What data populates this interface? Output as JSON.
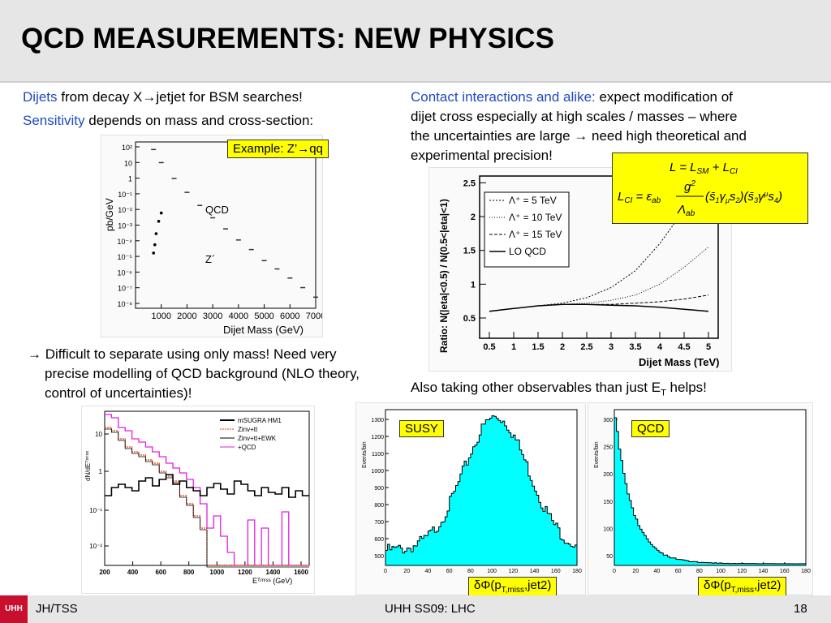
{
  "slide": {
    "title": "QCD MEASUREMENTS: NEW PHYSICS",
    "left": {
      "line1_hl": "Dijets",
      "line1_rest": " from decay X→jetjet for BSM searches!",
      "line2_hl": "Sensitivity",
      "line2_rest": " depends on mass and cross-section:",
      "example_box": "Example: Z’→qq",
      "bullet": "→ Difficult to separate using only mass! Need very",
      "bullet2": "precise modelling of QCD background (NLO theory,",
      "bullet3": "control of uncertainties)!"
    },
    "right": {
      "p_hl": "Contact interactions and alike:",
      "p1": " expect modification of",
      "p2": "dijet cross especially at high scales / masses – where",
      "p3": "the uncertainties are large → need high theoretical and",
      "p4": "experimental precision!",
      "also_pre": "Also taking other observables than just E",
      "also_sub": "T",
      "also_post": " helps!"
    },
    "formula": {
      "line1": "L = L_SM + L_CI",
      "line2": "L_CI = εⁱ_ab g²/Λⁱ_ab (s̄₁γ_μs₂)(s̄₃γ^μs₄)"
    },
    "footer": {
      "logo": "UHH",
      "left": "JH/TSS",
      "center": "UHH SS09: LHC",
      "page": "18"
    }
  },
  "plot_mass": {
    "ylabel": "pb/GeV",
    "xlabel": "Dijet Mass (GeV)",
    "yticks": [
      "10²",
      "10",
      "1",
      "10⁻¹",
      "10⁻²",
      "10⁻³",
      "10⁻⁴",
      "10⁻⁵",
      "10⁻⁶",
      "10⁻⁷",
      "10⁻⁸"
    ],
    "xticks": [
      "1000",
      "2000",
      "3000",
      "4000",
      "5000",
      "6000",
      "7000"
    ],
    "label_qcd": "QCD",
    "label_z": "Z´"
  },
  "plot_ratio": {
    "ylabel": "Ratio: N(|eta|<0.5) / N(0.5<|eta|<1)",
    "xlabel": "Dijet Mass (TeV)",
    "xticks": [
      "0.5",
      "1",
      "1.5",
      "2",
      "2.5",
      "3",
      "3.5",
      "4",
      "4.5",
      "5"
    ],
    "yticks": [
      "2.5",
      "2",
      "1.5",
      "1",
      "0.5"
    ],
    "legend": [
      "Λ⁺ = 5 TeV",
      "Λ⁺ = 10 TeV",
      "Λ⁺ = 15 TeV",
      "LO  QCD"
    ]
  },
  "plot_met": {
    "ylabel": "dN/dEᵀᵐⁱˢˢ",
    "xlabel": "Eᵀᵐⁱˢˢ (GeV)",
    "xticks": [
      "200",
      "400",
      "600",
      "800",
      "1000",
      "1200",
      "1400",
      "1600"
    ],
    "yticks": [
      "10",
      "1",
      "10⁻¹",
      "10⁻²"
    ],
    "legend": [
      "mSUGRA HM1",
      "Zinv+tt",
      "Zinv+tt+EWK",
      "+QCD"
    ]
  },
  "plot_susy": {
    "label": "SUSY",
    "ylabel": "Events/bin",
    "caption": "δΦ(p",
    "caption_sub": "T,miss",
    "caption_end": ",jet2)",
    "yticks": [
      "1300",
      "1200",
      "1100",
      "1000",
      "900",
      "800",
      "700",
      "600",
      "500"
    ],
    "xticks": [
      "0",
      "20",
      "40",
      "60",
      "80",
      "100",
      "120",
      "140",
      "160",
      "180"
    ]
  },
  "plot_qcd": {
    "label": "QCD",
    "ylabel": "Events/bin",
    "caption": "δΦ(p",
    "caption_sub": "T,miss",
    "caption_end": ",jet2)",
    "yticks": [
      "300",
      "250",
      "200",
      "150",
      "100",
      "50"
    ],
    "xticks": [
      "0",
      "20",
      "40",
      "60",
      "80",
      "100",
      "120",
      "140",
      "160",
      "180"
    ]
  },
  "chart_data": [
    {
      "type": "scatter",
      "ylabel": "pb/GeV",
      "xlabel": "Dijet Mass (GeV)",
      "log_y": true,
      "xlim": [
        0,
        7000
      ],
      "ylim": [
        1e-08,
        300
      ],
      "series": [
        {
          "name": "QCD",
          "x": [
            700,
            1000,
            1500,
            2000,
            2500,
            3000,
            3500,
            4000,
            4500,
            5000,
            5500,
            6000,
            6500,
            7000
          ],
          "y": [
            100,
            15,
            1.5,
            0.2,
            0.03,
            0.005,
            0.001,
            0.0002,
            5e-05,
            1e-05,
            3e-06,
            8e-07,
            2e-07,
            5e-08
          ]
        },
        {
          "name": "Z´",
          "x": [
            700,
            750,
            800,
            900,
            1000
          ],
          "y": [
            3e-05,
            0.0001,
            0.0005,
            0.003,
            0.01
          ]
        }
      ]
    },
    {
      "type": "line",
      "ylabel": "Ratio: N(|eta|<0.5) / N(0.5<|eta|<1)",
      "xlabel": "Dijet Mass (TeV)",
      "xlim": [
        0.3,
        5.2
      ],
      "ylim": [
        0.2,
        2.6
      ],
      "x": [
        0.5,
        1,
        1.5,
        2,
        2.5,
        3,
        3.5,
        4,
        4.5,
        5
      ],
      "series": [
        {
          "name": "Λ⁺ = 5 TeV",
          "values": [
            0.6,
            0.64,
            0.68,
            0.72,
            0.8,
            0.95,
            1.2,
            1.6,
            2.1,
            2.6
          ]
        },
        {
          "name": "Λ⁺ = 10 TeV",
          "values": [
            0.6,
            0.64,
            0.68,
            0.7,
            0.72,
            0.76,
            0.84,
            1.0,
            1.25,
            1.55
          ]
        },
        {
          "name": "Λ⁺ = 15 TeV",
          "values": [
            0.6,
            0.64,
            0.68,
            0.7,
            0.7,
            0.7,
            0.72,
            0.74,
            0.78,
            0.84
          ]
        },
        {
          "name": "LO  QCD",
          "values": [
            0.6,
            0.64,
            0.68,
            0.7,
            0.7,
            0.69,
            0.68,
            0.66,
            0.63,
            0.6
          ]
        }
      ]
    }
  ]
}
